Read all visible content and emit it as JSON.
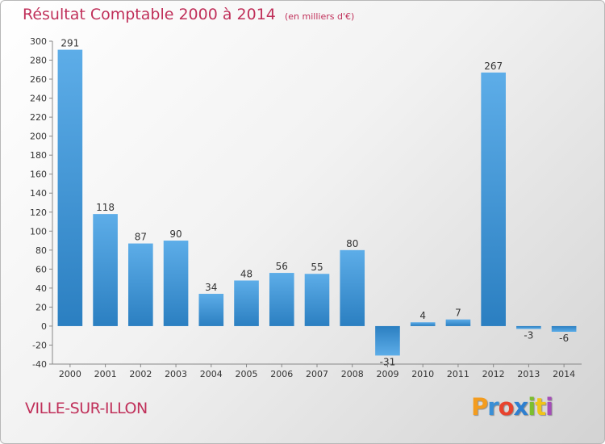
{
  "chart_data": {
    "type": "bar",
    "title": "Résultat Comptable 2000 à 2014",
    "subtitle": "(en milliers d'€)",
    "categories": [
      "2000",
      "2001",
      "2002",
      "2003",
      "2004",
      "2005",
      "2006",
      "2007",
      "2008",
      "2009",
      "2010",
      "2011",
      "2012",
      "2013",
      "2014"
    ],
    "values": [
      291,
      118,
      87,
      90,
      34,
      48,
      56,
      55,
      80,
      -31,
      4,
      7,
      267,
      -3,
      -6
    ],
    "ylim": [
      -40,
      300
    ],
    "yticks": [
      -40,
      -20,
      0,
      20,
      40,
      60,
      80,
      100,
      120,
      140,
      160,
      180,
      200,
      220,
      240,
      260,
      280,
      300
    ],
    "xlabel": "",
    "ylabel": "",
    "grid": false,
    "colors": {
      "bar_light": "#5dade8",
      "bar_dark": "#2b7fc1",
      "title": "#c0305a"
    }
  },
  "place": "VILLE-SUR-ILLON",
  "logo": {
    "letters": [
      "P",
      "r",
      "o",
      "x",
      "i",
      "t",
      "i"
    ],
    "colors": [
      "#f39c1f",
      "#3a8fd6",
      "#e8432e",
      "#2e7fd0",
      "#7cbf2e",
      "#f0c419",
      "#a54db8"
    ]
  }
}
